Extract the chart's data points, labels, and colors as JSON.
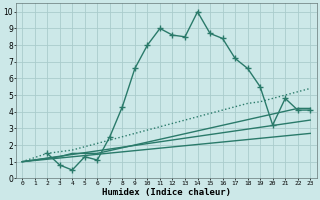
{
  "xlabel": "Humidex (Indice chaleur)",
  "xlim": [
    -0.5,
    23.5
  ],
  "ylim": [
    0,
    10.5
  ],
  "xticks": [
    0,
    1,
    2,
    3,
    4,
    5,
    6,
    7,
    8,
    9,
    10,
    11,
    12,
    13,
    14,
    15,
    16,
    17,
    18,
    19,
    20,
    21,
    22,
    23
  ],
  "yticks": [
    0,
    1,
    2,
    3,
    4,
    5,
    6,
    7,
    8,
    9,
    10
  ],
  "background_color": "#cce8e8",
  "grid_color": "#aacccc",
  "line_color": "#2a7a6a",
  "series": [
    {
      "x": [
        2,
        3,
        4,
        5,
        6,
        7,
        8,
        9,
        10,
        11,
        12,
        13,
        14,
        15,
        16,
        17,
        18,
        19,
        20,
        21,
        22,
        23
      ],
      "y": [
        1.5,
        0.8,
        0.5,
        1.3,
        1.1,
        2.5,
        4.3,
        6.6,
        8.0,
        9.0,
        8.6,
        8.5,
        10.0,
        8.7,
        8.4,
        7.2,
        6.6,
        5.5,
        3.2,
        4.8,
        4.1,
        4.1
      ],
      "marker": true
    },
    {
      "x": [
        0,
        2,
        3,
        4,
        5,
        6,
        7,
        8,
        9,
        10,
        11,
        12,
        13,
        14,
        15,
        16,
        17,
        18,
        19,
        20,
        21,
        22,
        23
      ],
      "y": [
        1.0,
        1.5,
        1.6,
        1.7,
        1.9,
        2.1,
        2.3,
        2.5,
        2.7,
        2.9,
        3.1,
        3.3,
        3.5,
        3.7,
        3.9,
        4.1,
        4.3,
        4.5,
        4.6,
        4.8,
        5.0,
        5.2,
        5.4
      ],
      "marker": false,
      "linestyle": ":"
    },
    {
      "x": [
        0,
        23
      ],
      "y": [
        1.0,
        3.5
      ],
      "marker": false,
      "linestyle": "-"
    },
    {
      "x": [
        0,
        23
      ],
      "y": [
        1.0,
        2.7
      ],
      "marker": false,
      "linestyle": "-"
    },
    {
      "x": [
        0,
        3,
        4,
        5,
        6,
        22,
        23
      ],
      "y": [
        1.0,
        1.3,
        1.5,
        1.5,
        1.5,
        4.2,
        4.2
      ],
      "marker": false,
      "linestyle": "-"
    }
  ]
}
